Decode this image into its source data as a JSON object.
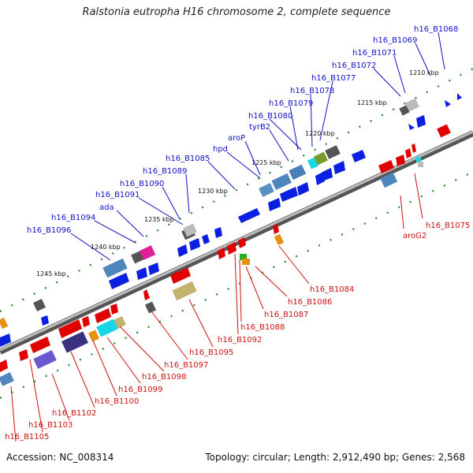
{
  "title": "Ralstonia eutropha H16 chromosome 2, complete sequence",
  "footer": {
    "accession": "Accession: NC_008314",
    "summary": "Topology: circular; Length: 2,912,490 bp; Genes: 2,568"
  },
  "ticks": [
    "1210 kbp",
    "1215 kbp",
    "1220 kbp",
    "1225 kbp",
    "1230 kbp",
    "1235 kbp",
    "1240 kbp",
    "1245 kbp"
  ],
  "forward_labels": [
    "h16_B1068",
    "h16_B1069",
    "h16_B1071",
    "h16_B1072",
    "h16_B1077",
    "h16_B1078",
    "h16_B1079",
    "h16_B1080",
    "tyrB2",
    "aroP",
    "hpd",
    "h16_B1085",
    "h16_B1089",
    "h16_B1090",
    "h16_B1091",
    "ada",
    "h16_B1094",
    "h16_B1096"
  ],
  "reverse_labels": [
    "h16_B1075",
    "aroG2",
    "h16_B1084",
    "h16_B1086",
    "h16_B1087",
    "h16_B1088",
    "h16_B1092",
    "h16_B1095",
    "h16_B1097",
    "h16_B1098",
    "h16_B1099",
    "h16_B1100",
    "h16_B1102",
    "h16_B1103",
    "h16_B1105"
  ]
}
